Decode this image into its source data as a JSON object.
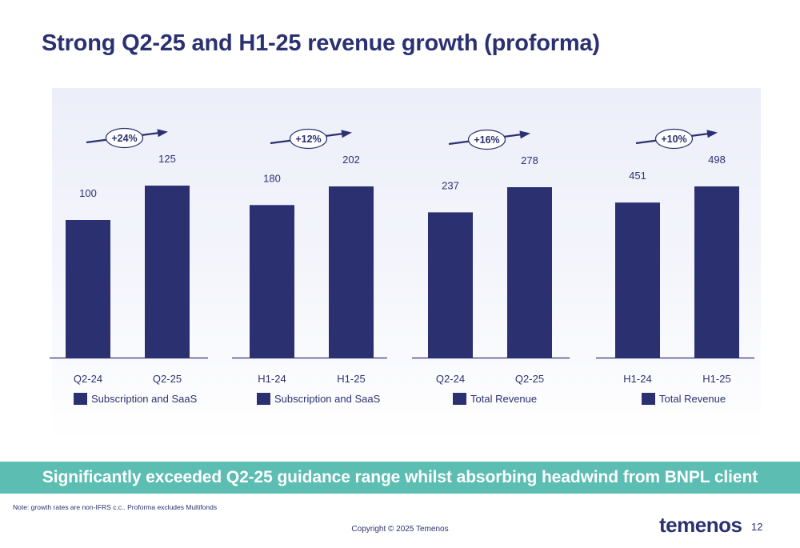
{
  "title": "Strong Q2-25 and H1-25 revenue growth (proforma)",
  "banner_text": "Significantly exceeded Q2-25 guidance range whilst absorbing headwind from BNPL client",
  "note": "Note: growth rates are non-IFRS c.c.. Proforma excludes Multifonds",
  "copyright": "Copyright © 2025 Temenos",
  "logo_text": "temenos",
  "page_number": "12",
  "colors": {
    "bar": "#2b3170",
    "title": "#2b3170",
    "banner": "#5cbdb2",
    "axis": "#2b3170"
  },
  "chart_data": [
    {
      "type": "bar",
      "categories": [
        "Q2-24",
        "Q2-25"
      ],
      "values": [
        100,
        125
      ],
      "legend": "Subscription and SaaS",
      "growth": "+24%"
    },
    {
      "type": "bar",
      "categories": [
        "H1-24",
        "H1-25"
      ],
      "values": [
        180,
        202
      ],
      "legend": "Subscription and SaaS",
      "growth": "+12%"
    },
    {
      "type": "bar",
      "categories": [
        "Q2-24",
        "Q2-25"
      ],
      "values": [
        237,
        278
      ],
      "legend": "Total Revenue",
      "growth": "+16%"
    },
    {
      "type": "bar",
      "categories": [
        "H1-24",
        "H1-25"
      ],
      "values": [
        451,
        498
      ],
      "legend": "Total Revenue",
      "growth": "+10%"
    }
  ]
}
